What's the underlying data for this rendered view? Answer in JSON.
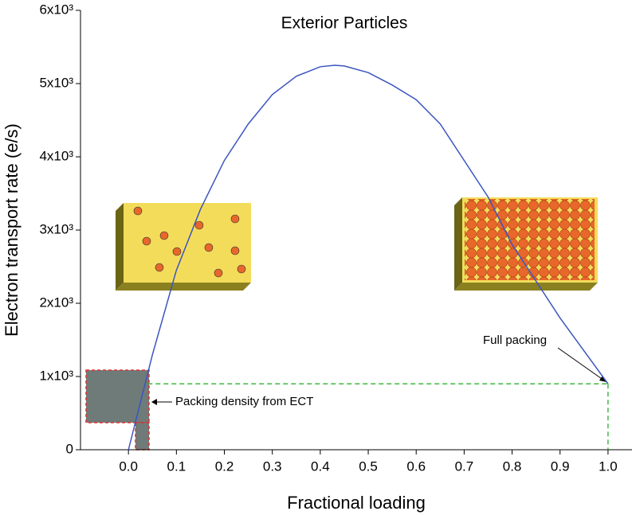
{
  "chart_data": {
    "type": "line",
    "title": "Exterior Particles",
    "x_label": "Fractional loading",
    "y_label": "Electron transport rate (e/s)",
    "annotations": [
      "Packing density from ECT",
      "Full packing"
    ],
    "series": [
      {
        "color": "#3b55c0",
        "x": [
          0,
          0.05,
          0.1,
          0.15,
          0.2,
          0.25,
          0.3,
          0.35,
          0.4,
          0.43,
          0.45,
          0.5,
          0.55,
          0.6,
          0.65,
          0.7,
          0.75,
          0.8,
          0.85,
          0.9,
          0.95,
          1.0
        ],
        "values": [
          0,
          1300,
          2450,
          3280,
          3950,
          4450,
          4850,
          5100,
          5230,
          5250,
          5240,
          5150,
          4980,
          4780,
          4450,
          3950,
          3450,
          2800,
          2300,
          1800,
          1350,
          900
        ]
      }
    ],
    "xlim": [
      -0.1,
      1.05
    ],
    "xticks": [
      {
        "value": 0,
        "label": "0.0"
      },
      0.1,
      0.2,
      0.3,
      0.4,
      0.5,
      0.6,
      0.7,
      0.8,
      0.9,
      {
        "value": 1,
        "label": "1.0"
      }
    ],
    "ylim": [
      0,
      6000
    ],
    "yticks": [
      0,
      {
        "value": 1000,
        "label": "1x10³"
      },
      {
        "value": 2000,
        "label": "2x10³"
      },
      {
        "value": 3000,
        "label": "3x10³"
      },
      {
        "value": 4000,
        "label": "4x10³"
      },
      {
        "value": 5000,
        "label": "5x10³"
      },
      {
        "value": 6000,
        "label": "6x10³"
      }
    ],
    "reference_color": "#2bb02b"
  }
}
